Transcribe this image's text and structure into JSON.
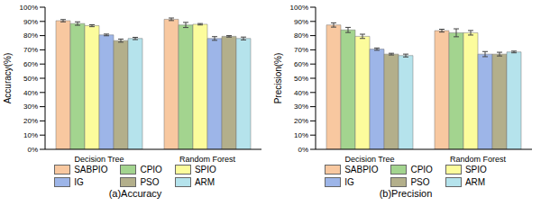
{
  "chart_data": [
    {
      "type": "bar",
      "title": "(a)Accuracy",
      "y_label": "Accuracy(%)",
      "categories": [
        "Decision Tree",
        "Random Forest"
      ],
      "ylim": [
        0,
        100
      ],
      "yticks": [
        {
          "value": 0,
          "label": "0%"
        },
        {
          "value": 10,
          "label": "10%"
        },
        {
          "value": 20,
          "label": "20%"
        },
        {
          "value": 30,
          "label": "30%"
        },
        {
          "value": 40,
          "label": "40%"
        },
        {
          "value": 50,
          "label": "50%"
        },
        {
          "value": 60,
          "label": "60%"
        },
        {
          "value": 70,
          "label": "70%"
        },
        {
          "value": 80,
          "label": "80%"
        },
        {
          "value": 90,
          "label": "90%"
        },
        {
          "value": 100,
          "label": "100%"
        }
      ],
      "grid": false,
      "legend": "bottom",
      "series": [
        {
          "name": "SABPIO",
          "color": "#F8C8A0",
          "values": [
            90.5,
            91.5
          ],
          "errors": [
            0.8,
            0.9
          ]
        },
        {
          "name": "CPIO",
          "color": "#A3D48F",
          "values": [
            88.5,
            87.5
          ],
          "errors": [
            1.2,
            1.8
          ]
        },
        {
          "name": "SPIO",
          "color": "#FCFC9C",
          "values": [
            87,
            88
          ],
          "errors": [
            0.7,
            0.5
          ]
        },
        {
          "name": "IG",
          "color": "#9DB5E8",
          "values": [
            80.5,
            78
          ],
          "errors": [
            0.6,
            1.3
          ]
        },
        {
          "name": "PSO",
          "color": "#B3AF8B",
          "values": [
            76.5,
            79.5
          ],
          "errors": [
            1.1,
            0.5
          ]
        },
        {
          "name": "ARM",
          "color": "#B5E3EC",
          "values": [
            78,
            78
          ],
          "errors": [
            0.8,
            1.0
          ]
        }
      ]
    },
    {
      "type": "bar",
      "title": "(b)Precision",
      "y_label": "Precision(%)",
      "categories": [
        "Decision Tree",
        "Random Forest"
      ],
      "ylim": [
        0,
        100
      ],
      "yticks": [
        {
          "value": 0,
          "label": "0%"
        },
        {
          "value": 10,
          "label": "10%"
        },
        {
          "value": 20,
          "label": "20%"
        },
        {
          "value": 30,
          "label": "30%"
        },
        {
          "value": 40,
          "label": "40%"
        },
        {
          "value": 50,
          "label": "50%"
        },
        {
          "value": 60,
          "label": "60%"
        },
        {
          "value": 70,
          "label": "70%"
        },
        {
          "value": 80,
          "label": "80%"
        },
        {
          "value": 90,
          "label": "90%"
        },
        {
          "value": 100,
          "label": "100%"
        }
      ],
      "grid": false,
      "legend": "bottom",
      "series": [
        {
          "name": "SABPIO",
          "color": "#F8C8A0",
          "values": [
            87.5,
            83.5
          ],
          "errors": [
            1.5,
            1.0
          ]
        },
        {
          "name": "CPIO",
          "color": "#A3D48F",
          "values": [
            84,
            82
          ],
          "errors": [
            1.8,
            2.8
          ]
        },
        {
          "name": "SPIO",
          "color": "#FCFC9C",
          "values": [
            79.5,
            82
          ],
          "errors": [
            1.5,
            1.6
          ]
        },
        {
          "name": "IG",
          "color": "#9DB5E8",
          "values": [
            70.5,
            67
          ],
          "errors": [
            0.8,
            1.8
          ]
        },
        {
          "name": "PSO",
          "color": "#B3AF8B",
          "values": [
            67,
            67
          ],
          "errors": [
            0.6,
            1.3
          ]
        },
        {
          "name": "ARM",
          "color": "#B5E3EC",
          "values": [
            66,
            68.5
          ],
          "errors": [
            1.0,
            0.6
          ]
        }
      ]
    }
  ]
}
